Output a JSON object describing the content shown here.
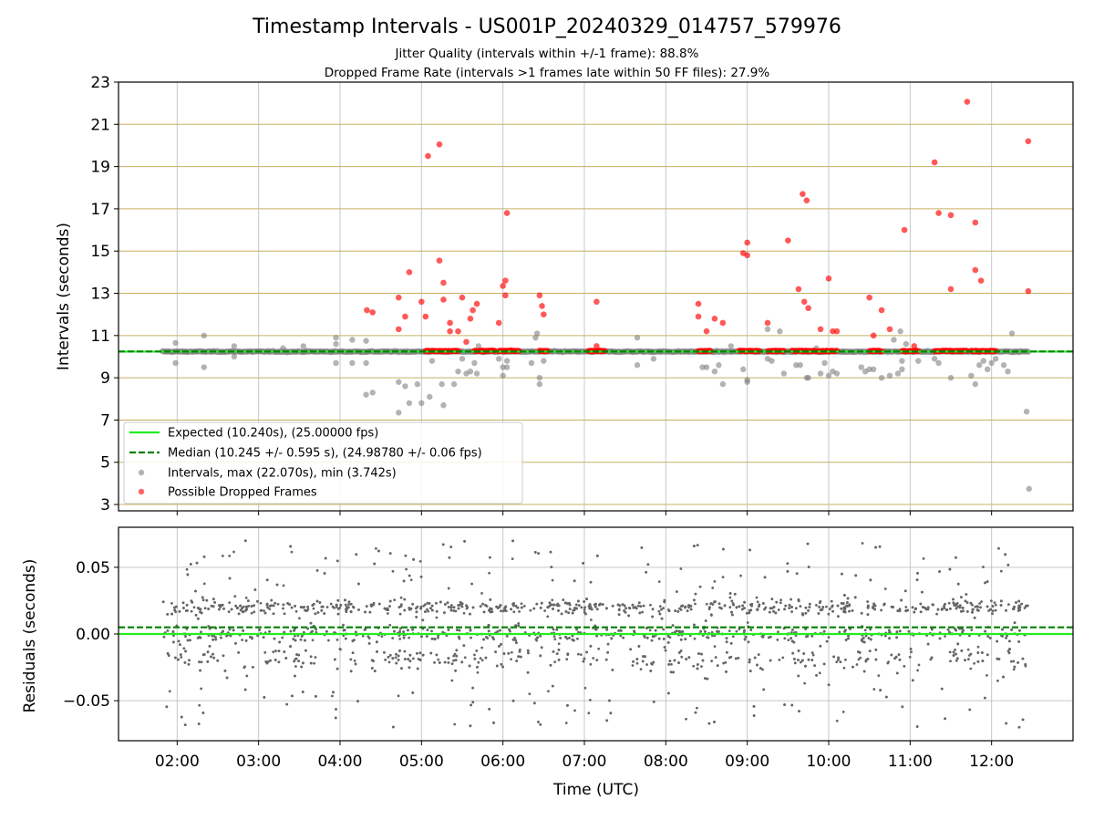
{
  "title": "Timestamp Intervals - US001P_20240329_014757_579976",
  "subtitle_1": "Jitter Quality (intervals within +/-1 frame): 88.8%",
  "subtitle_2": "Dropped Frame Rate (intervals >1 frames late within 50 FF files): 27.9%",
  "colors": {
    "expected": "#22ee22",
    "median": "#008000",
    "intervals": "#808080",
    "dropped": "#ff0000",
    "hgrid_top": "#c8b060",
    "grid": "#b0b0b0"
  },
  "chart_data": [
    {
      "type": "scatter",
      "name": "intervals",
      "ylabel": "Intervals (seconds)",
      "ylim": [
        2.7,
        23
      ],
      "yticks": [
        "3",
        "5",
        "7",
        "9",
        "11",
        "13",
        "15",
        "17",
        "19",
        "21",
        "23"
      ],
      "grid": true,
      "legend_position": "lower-left",
      "expected_value": 10.24,
      "median_value": 10.245,
      "legend": [
        "Expected (10.240s), (25.00000 fps)",
        "Median (10.245 +/- 0.595 s), (24.98780 +/- 0.06 fps)",
        "Intervals, max (22.070s), min (3.742s)",
        "Possible Dropped Frames"
      ],
      "intervals_outliers": [
        [
          1.98,
          10.65
        ],
        [
          1.98,
          9.7
        ],
        [
          2.33,
          11.0
        ],
        [
          2.33,
          9.5
        ],
        [
          2.7,
          10.5
        ],
        [
          2.7,
          10.0
        ],
        [
          3.3,
          10.4
        ],
        [
          3.55,
          10.5
        ],
        [
          3.95,
          10.9
        ],
        [
          3.95,
          9.7
        ],
        [
          3.95,
          10.6
        ],
        [
          4.15,
          10.8
        ],
        [
          4.15,
          9.7
        ],
        [
          4.32,
          10.75
        ],
        [
          4.32,
          9.7
        ],
        [
          4.32,
          8.2
        ],
        [
          4.4,
          8.3
        ],
        [
          4.72,
          8.8
        ],
        [
          4.72,
          7.35
        ],
        [
          4.8,
          8.6
        ],
        [
          4.85,
          7.8
        ],
        [
          4.95,
          8.7
        ],
        [
          5.0,
          7.8
        ],
        [
          5.1,
          8.1
        ],
        [
          5.13,
          9.8
        ],
        [
          5.25,
          8.7
        ],
        [
          5.27,
          7.7
        ],
        [
          5.4,
          8.7
        ],
        [
          5.45,
          9.3
        ],
        [
          5.5,
          9.9
        ],
        [
          5.55,
          9.2
        ],
        [
          5.6,
          9.3
        ],
        [
          5.65,
          9.7
        ],
        [
          5.68,
          9.2
        ],
        [
          5.7,
          10.5
        ],
        [
          5.95,
          9.9
        ],
        [
          6.0,
          9.1
        ],
        [
          6.0,
          9.5
        ],
        [
          6.05,
          9.5
        ],
        [
          6.05,
          9.8
        ],
        [
          6.35,
          9.7
        ],
        [
          6.4,
          10.9
        ],
        [
          6.42,
          11.1
        ],
        [
          6.45,
          8.7
        ],
        [
          6.45,
          9.0
        ],
        [
          6.5,
          9.8
        ],
        [
          7.65,
          10.9
        ],
        [
          7.65,
          9.6
        ],
        [
          7.85,
          9.9
        ],
        [
          8.45,
          9.5
        ],
        [
          8.5,
          9.5
        ],
        [
          8.6,
          9.3
        ],
        [
          8.65,
          9.6
        ],
        [
          8.7,
          8.7
        ],
        [
          8.8,
          10.5
        ],
        [
          8.95,
          9.4
        ],
        [
          9.0,
          8.8
        ],
        [
          9.0,
          8.9
        ],
        [
          9.25,
          9.9
        ],
        [
          9.3,
          9.8
        ],
        [
          9.25,
          11.3
        ],
        [
          9.4,
          11.2
        ],
        [
          9.45,
          9.2
        ],
        [
          9.6,
          9.6
        ],
        [
          9.65,
          9.6
        ],
        [
          9.73,
          9.0
        ],
        [
          9.75,
          9.0
        ],
        [
          9.85,
          10.4
        ],
        [
          9.9,
          9.2
        ],
        [
          9.95,
          9.7
        ],
        [
          10.0,
          9.1
        ],
        [
          10.05,
          9.3
        ],
        [
          10.1,
          9.2
        ],
        [
          10.4,
          9.5
        ],
        [
          10.45,
          9.3
        ],
        [
          10.5,
          9.4
        ],
        [
          10.55,
          9.4
        ],
        [
          10.65,
          9.0
        ],
        [
          10.75,
          9.1
        ],
        [
          10.8,
          10.8
        ],
        [
          10.85,
          9.2
        ],
        [
          10.88,
          11.2
        ],
        [
          10.9,
          9.4
        ],
        [
          10.9,
          9.8
        ],
        [
          10.95,
          10.6
        ],
        [
          11.1,
          9.8
        ],
        [
          11.3,
          9.9
        ],
        [
          11.35,
          9.7
        ],
        [
          11.5,
          9.0
        ],
        [
          11.75,
          9.1
        ],
        [
          11.8,
          8.7
        ],
        [
          11.85,
          9.6
        ],
        [
          11.9,
          9.8
        ],
        [
          11.95,
          9.4
        ],
        [
          12.0,
          9.7
        ],
        [
          12.05,
          9.9
        ],
        [
          12.15,
          9.6
        ],
        [
          12.2,
          9.3
        ],
        [
          12.25,
          11.1
        ],
        [
          12.43,
          7.4
        ],
        [
          12.46,
          3.742
        ]
      ],
      "dropped_frames": [
        [
          4.33,
          12.2
        ],
        [
          4.4,
          12.1
        ],
        [
          4.72,
          12.8
        ],
        [
          4.72,
          11.3
        ],
        [
          4.8,
          11.9
        ],
        [
          4.85,
          14.0
        ],
        [
          5.0,
          12.6
        ],
        [
          5.05,
          11.9
        ],
        [
          5.08,
          19.5
        ],
        [
          5.22,
          20.05
        ],
        [
          5.22,
          14.55
        ],
        [
          5.27,
          13.5
        ],
        [
          5.27,
          12.7
        ],
        [
          5.35,
          11.6
        ],
        [
          5.35,
          11.2
        ],
        [
          5.45,
          11.2
        ],
        [
          5.5,
          12.8
        ],
        [
          5.55,
          10.7
        ],
        [
          5.6,
          11.8
        ],
        [
          5.63,
          12.2
        ],
        [
          5.68,
          12.5
        ],
        [
          5.75,
          10.3
        ],
        [
          5.95,
          11.6
        ],
        [
          6.0,
          13.35
        ],
        [
          6.03,
          12.9
        ],
        [
          6.03,
          13.6
        ],
        [
          6.05,
          16.8
        ],
        [
          6.1,
          10.3
        ],
        [
          6.45,
          12.9
        ],
        [
          6.48,
          12.4
        ],
        [
          6.5,
          12.0
        ],
        [
          7.15,
          12.6
        ],
        [
          7.15,
          10.5
        ],
        [
          8.4,
          12.5
        ],
        [
          8.4,
          11.9
        ],
        [
          8.5,
          11.2
        ],
        [
          8.6,
          11.8
        ],
        [
          8.7,
          11.6
        ],
        [
          8.95,
          14.9
        ],
        [
          9.0,
          15.4
        ],
        [
          9.0,
          14.8
        ],
        [
          9.25,
          11.6
        ],
        [
          9.5,
          15.5
        ],
        [
          9.63,
          13.2
        ],
        [
          9.68,
          17.7
        ],
        [
          9.7,
          12.6
        ],
        [
          9.73,
          17.4
        ],
        [
          9.75,
          12.3
        ],
        [
          9.9,
          11.3
        ],
        [
          10.0,
          13.7
        ],
        [
          10.05,
          11.2
        ],
        [
          10.1,
          11.2
        ],
        [
          10.5,
          12.8
        ],
        [
          10.55,
          11.0
        ],
        [
          10.65,
          12.2
        ],
        [
          10.75,
          11.3
        ],
        [
          10.93,
          16.0
        ],
        [
          11.05,
          10.5
        ],
        [
          11.3,
          19.2
        ],
        [
          11.35,
          16.8
        ],
        [
          11.5,
          16.7
        ],
        [
          11.5,
          13.2
        ],
        [
          11.7,
          22.07
        ],
        [
          11.8,
          16.35
        ],
        [
          11.8,
          14.1
        ],
        [
          11.87,
          13.6
        ],
        [
          12.45,
          20.2
        ],
        [
          12.45,
          13.1
        ]
      ],
      "dropped_baseline_clusters": [
        [
          5.05,
          5.45
        ],
        [
          5.65,
          5.9
        ],
        [
          5.95,
          6.2
        ],
        [
          6.45,
          6.55
        ],
        [
          7.05,
          7.25
        ],
        [
          8.4,
          8.55
        ],
        [
          8.9,
          9.15
        ],
        [
          9.25,
          9.45
        ],
        [
          9.55,
          10.1
        ],
        [
          10.5,
          10.65
        ],
        [
          10.9,
          11.1
        ],
        [
          11.3,
          11.7
        ],
        [
          11.75,
          12.05
        ]
      ]
    },
    {
      "type": "scatter",
      "name": "residuals",
      "ylabel": "Residuals (seconds)",
      "xlabel": "Time (UTC)",
      "xlim": [
        1.28,
        13.0
      ],
      "ylim": [
        -0.08,
        0.08
      ],
      "xticks": [
        "02:00",
        "03:00",
        "04:00",
        "05:00",
        "06:00",
        "07:00",
        "08:00",
        "09:00",
        "10:00",
        "11:00",
        "12:00"
      ],
      "yticks": [
        "−0.05",
        "0.00",
        "0.05"
      ],
      "expected_value": 0.0,
      "median_value": 0.005,
      "grid": true
    }
  ]
}
